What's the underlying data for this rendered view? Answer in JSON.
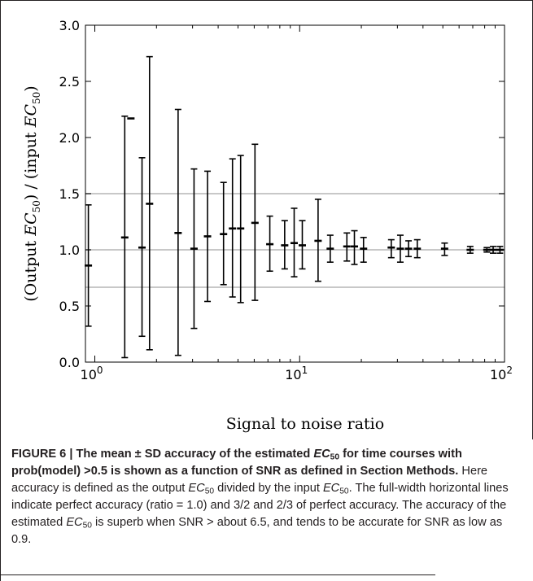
{
  "chart_data": {
    "type": "errorbar",
    "xscale": "log",
    "xlim": [
      0.9,
      100
    ],
    "ylim": [
      0.0,
      3.0
    ],
    "xlabel": "Signal to noise ratio",
    "ylabel": "(Output EC50) / (input EC50)",
    "ylabel_parts": {
      "a": "(Output ",
      "ec": "EC",
      "sub": "50",
      "b": ") / (input ",
      "c": ")"
    },
    "yticks": [
      "0.0",
      "0.5",
      "1.0",
      "1.5",
      "2.0",
      "2.5",
      "3.0"
    ],
    "xticks": [
      {
        "base": "10",
        "exp": "0",
        "value": 1
      },
      {
        "base": "10",
        "exp": "1",
        "value": 10
      },
      {
        "base": "10",
        "exp": "2",
        "value": 100
      }
    ],
    "reference_lines": [
      1.5,
      1.0,
      0.6667
    ],
    "grid": false,
    "points": [
      {
        "x": 0.93,
        "y": 0.86,
        "lo": 0.32,
        "hi": 1.4
      },
      {
        "x": 1.4,
        "y": 1.11,
        "lo": 0.04,
        "hi": 2.19
      },
      {
        "x": 1.5,
        "y": 2.17,
        "lo": 2.17,
        "hi": 2.17
      },
      {
        "x": 1.7,
        "y": 1.02,
        "lo": 0.23,
        "hi": 1.82
      },
      {
        "x": 1.85,
        "y": 1.41,
        "lo": 0.11,
        "hi": 2.72
      },
      {
        "x": 2.55,
        "y": 1.15,
        "lo": 0.06,
        "hi": 2.25
      },
      {
        "x": 3.05,
        "y": 1.01,
        "lo": 0.3,
        "hi": 1.72
      },
      {
        "x": 3.55,
        "y": 1.12,
        "lo": 0.54,
        "hi": 1.7
      },
      {
        "x": 4.25,
        "y": 1.14,
        "lo": 0.69,
        "hi": 1.6
      },
      {
        "x": 4.7,
        "y": 1.19,
        "lo": 0.58,
        "hi": 1.81
      },
      {
        "x": 5.15,
        "y": 1.19,
        "lo": 0.53,
        "hi": 1.84
      },
      {
        "x": 6.05,
        "y": 1.24,
        "lo": 0.55,
        "hi": 1.94
      },
      {
        "x": 7.15,
        "y": 1.05,
        "lo": 0.81,
        "hi": 1.3
      },
      {
        "x": 8.45,
        "y": 1.04,
        "lo": 0.83,
        "hi": 1.26
      },
      {
        "x": 9.4,
        "y": 1.06,
        "lo": 0.76,
        "hi": 1.37
      },
      {
        "x": 10.3,
        "y": 1.04,
        "lo": 0.83,
        "hi": 1.26
      },
      {
        "x": 12.3,
        "y": 1.08,
        "lo": 0.72,
        "hi": 1.45
      },
      {
        "x": 14.1,
        "y": 1.01,
        "lo": 0.89,
        "hi": 1.13
      },
      {
        "x": 17.0,
        "y": 1.03,
        "lo": 0.9,
        "hi": 1.15
      },
      {
        "x": 18.5,
        "y": 1.03,
        "lo": 0.87,
        "hi": 1.17
      },
      {
        "x": 20.5,
        "y": 1.01,
        "lo": 0.89,
        "hi": 1.11
      },
      {
        "x": 28.0,
        "y": 1.02,
        "lo": 0.93,
        "hi": 1.09
      },
      {
        "x": 31.0,
        "y": 1.01,
        "lo": 0.89,
        "hi": 1.13
      },
      {
        "x": 34.0,
        "y": 1.01,
        "lo": 0.94,
        "hi": 1.08
      },
      {
        "x": 37.5,
        "y": 1.01,
        "lo": 0.93,
        "hi": 1.09
      },
      {
        "x": 51.0,
        "y": 1.01,
        "lo": 0.95,
        "hi": 1.06
      },
      {
        "x": 68.0,
        "y": 1.0,
        "lo": 0.97,
        "hi": 1.03
      },
      {
        "x": 82.0,
        "y": 1.0,
        "lo": 0.98,
        "hi": 1.02
      },
      {
        "x": 88.0,
        "y": 1.0,
        "lo": 0.97,
        "hi": 1.03
      },
      {
        "x": 95.0,
        "y": 1.0,
        "lo": 0.97,
        "hi": 1.03
      }
    ]
  },
  "caption": {
    "fig": "FIGURE 6 | ",
    "b1": "The mean ± SD accuracy of the estimated ",
    "ec": "EC",
    "sub": "50",
    "b2": " for time courses with prob(model) >0.5 is shown as a function of SNR as defined in Section Methods.",
    "t1": " Here accuracy is defined as the output ",
    "t2": " divided by the input ",
    "t3": ". The full-width horizontal lines indicate perfect accuracy (ratio = 1.0) and 3/2 and 2/3 of perfect accuracy. The accuracy of the estimated ",
    "t4": " is superb when SNR > about 6.5, and tends to be accurate for SNR as low as 0.9."
  }
}
